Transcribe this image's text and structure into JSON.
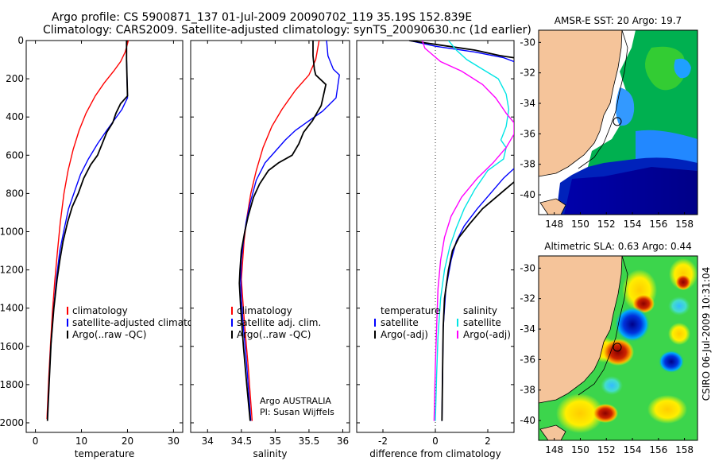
{
  "header": {
    "line1": "Argo profile: CS 5900871_137 01-Jul-2009 20090702_119 35.19S 152.839E",
    "line2": "Climatology: CARS2009. Satellite-adjusted climatology: synTS_20090630.nc (1d earlier)"
  },
  "colors": {
    "clim": "#ff0000",
    "sat": "#0000ff",
    "argo": "#000000",
    "cyan": "#00e5e5",
    "magenta": "#ff00ff",
    "land": "#f5c49a"
  },
  "chart_data": [
    {
      "type": "line",
      "name": "temperature-profile",
      "xlabel": "temperature",
      "ylabel": "",
      "xlim": [
        -2,
        32
      ],
      "ylim": [
        2050,
        0
      ],
      "xticks": [
        0,
        10,
        20,
        30
      ],
      "yticks": [
        0,
        200,
        400,
        600,
        800,
        1000,
        1200,
        1400,
        1600,
        1800,
        2000
      ],
      "series": [
        {
          "name": "climatology",
          "color": "#ff0000",
          "points": [
            [
              20.2,
              0
            ],
            [
              19.5,
              60
            ],
            [
              18.5,
              110
            ],
            [
              17,
              160
            ],
            [
              15,
              220
            ],
            [
              13,
              290
            ],
            [
              11,
              380
            ],
            [
              9.5,
              470
            ],
            [
              8.2,
              570
            ],
            [
              7.1,
              680
            ],
            [
              6.2,
              800
            ],
            [
              5.4,
              950
            ],
            [
              4.8,
              1100
            ],
            [
              4.2,
              1260
            ],
            [
              3.7,
              1420
            ],
            [
              3.3,
              1580
            ],
            [
              2.9,
              1760
            ],
            [
              2.5,
              1980
            ]
          ]
        },
        {
          "name": "satellite-adjusted climatology",
          "color": "#0000ff",
          "points": [
            [
              19.8,
              0
            ],
            [
              19.8,
              100
            ],
            [
              19.9,
              200
            ],
            [
              20,
              300
            ],
            [
              18.8,
              360
            ],
            [
              17,
              420
            ],
            [
              15.5,
              470
            ],
            [
              13.5,
              540
            ],
            [
              11.5,
              620
            ],
            [
              9.8,
              700
            ],
            [
              8.5,
              790
            ],
            [
              7.2,
              880
            ],
            [
              6.3,
              980
            ],
            [
              5.3,
              1100
            ],
            [
              4.6,
              1240
            ],
            [
              3.9,
              1420
            ],
            [
              3.3,
              1620
            ],
            [
              2.9,
              1820
            ],
            [
              2.6,
              1980
            ]
          ]
        },
        {
          "name": "Argo(..raw -QC)",
          "color": "#000000",
          "points": [
            [
              19.8,
              0
            ],
            [
              19.8,
              100
            ],
            [
              19.9,
              200
            ],
            [
              20,
              290
            ],
            [
              18.5,
              330
            ],
            [
              17.5,
              380
            ],
            [
              16.8,
              430
            ],
            [
              15.5,
              480
            ],
            [
              14.5,
              540
            ],
            [
              13.5,
              600
            ],
            [
              12,
              650
            ],
            [
              10.5,
              720
            ],
            [
              9.3,
              800
            ],
            [
              8,
              870
            ],
            [
              7,
              950
            ],
            [
              6,
              1050
            ],
            [
              5.3,
              1150
            ],
            [
              4.7,
              1250
            ],
            [
              4,
              1400
            ],
            [
              3.4,
              1580
            ],
            [
              3,
              1780
            ],
            [
              2.6,
              1990
            ]
          ]
        }
      ],
      "legend": [
        "climatology",
        "satellite-adjusted climatology",
        "Argo(..raw -QC)"
      ],
      "legend_position": "bottom-right"
    },
    {
      "type": "line",
      "name": "salinity-profile",
      "xlabel": "salinity",
      "ylabel": "",
      "xlim": [
        33.75,
        36.1
      ],
      "ylim": [
        2050,
        0
      ],
      "xticks": [
        34,
        34.5,
        35,
        35.5,
        36
      ],
      "series": [
        {
          "name": "climatology",
          "color": "#ff0000",
          "points": [
            [
              35.65,
              0
            ],
            [
              35.6,
              100
            ],
            [
              35.5,
              180
            ],
            [
              35.3,
              260
            ],
            [
              35.1,
              360
            ],
            [
              34.95,
              450
            ],
            [
              34.82,
              560
            ],
            [
              34.72,
              680
            ],
            [
              34.64,
              800
            ],
            [
              34.58,
              930
            ],
            [
              34.54,
              1050
            ],
            [
              34.52,
              1150
            ],
            [
              34.5,
              1250
            ],
            [
              34.52,
              1350
            ],
            [
              34.55,
              1500
            ],
            [
              34.6,
              1700
            ],
            [
              34.66,
              1990
            ]
          ]
        },
        {
          "name": "satellite adj. clim.",
          "color": "#0000ff",
          "points": [
            [
              35.76,
              0
            ],
            [
              35.78,
              80
            ],
            [
              35.86,
              150
            ],
            [
              35.95,
              180
            ],
            [
              35.9,
              300
            ],
            [
              35.7,
              370
            ],
            [
              35.5,
              420
            ],
            [
              35.3,
              470
            ],
            [
              35.15,
              520
            ],
            [
              35.0,
              580
            ],
            [
              34.85,
              640
            ],
            [
              34.72,
              730
            ],
            [
              34.63,
              850
            ],
            [
              34.57,
              950
            ],
            [
              34.53,
              1050
            ],
            [
              34.5,
              1150
            ],
            [
              34.49,
              1250
            ],
            [
              34.5,
              1350
            ],
            [
              34.53,
              1500
            ],
            [
              34.58,
              1700
            ],
            [
              34.64,
              1990
            ]
          ]
        },
        {
          "name": "Argo(..raw -QC)",
          "color": "#000000",
          "points": [
            [
              35.56,
              0
            ],
            [
              35.56,
              80
            ],
            [
              35.58,
              150
            ],
            [
              35.6,
              180
            ],
            [
              35.75,
              230
            ],
            [
              35.68,
              340
            ],
            [
              35.55,
              420
            ],
            [
              35.42,
              480
            ],
            [
              35.35,
              540
            ],
            [
              35.25,
              600
            ],
            [
              35.05,
              640
            ],
            [
              34.9,
              680
            ],
            [
              34.77,
              750
            ],
            [
              34.68,
              820
            ],
            [
              34.6,
              920
            ],
            [
              34.55,
              1000
            ],
            [
              34.5,
              1100
            ],
            [
              34.48,
              1200
            ],
            [
              34.47,
              1270
            ],
            [
              34.49,
              1400
            ],
            [
              34.53,
              1600
            ],
            [
              34.58,
              1800
            ],
            [
              34.63,
              1990
            ]
          ]
        }
      ],
      "legend": [
        "climatology",
        "satellite adj. clim.",
        "Argo(..raw -QC)"
      ],
      "annotations": [
        "Argo AUSTRALIA",
        "PI: Susan Wijffels"
      ]
    },
    {
      "type": "line",
      "name": "difference-profile",
      "xlabel": "difference from climatology",
      "ylabel": "",
      "xlim": [
        -3,
        3
      ],
      "ylim": [
        2050,
        0
      ],
      "zero_line": "dotted",
      "xticks": [
        -2,
        0,
        2
      ],
      "legend_left": [
        "temperature",
        "satellite",
        "Argo(-adj)"
      ],
      "legend_right": [
        "salinity",
        "satellite",
        "Argo(-adj)"
      ],
      "series": [
        {
          "name": "temperature satellite",
          "color": "#0000ff",
          "points": [
            [
              -1,
              0
            ],
            [
              0,
              30
            ],
            [
              1.5,
              60
            ],
            [
              2.6,
              90
            ],
            [
              3,
              110
            ]
          ]
        },
        {
          "name": "temperature satellite (lower)",
          "color": "#0000ff",
          "points": [
            [
              3,
              670
            ],
            [
              2.6,
              720
            ],
            [
              2.1,
              800
            ],
            [
              1.6,
              880
            ],
            [
              1.1,
              970
            ],
            [
              0.8,
              1050
            ],
            [
              0.6,
              1150
            ],
            [
              0.4,
              1300
            ],
            [
              0.3,
              1500
            ],
            [
              0.28,
              1700
            ],
            [
              0.25,
              1990
            ]
          ]
        },
        {
          "name": "temperature Argo(-adj)",
          "color": "#000000",
          "points": [
            [
              -1,
              0
            ],
            [
              0,
              20
            ],
            [
              1.5,
              50
            ],
            [
              2.5,
              80
            ],
            [
              3,
              90
            ]
          ]
        },
        {
          "name": "temperature Argo(-adj) (lower)",
          "color": "#000000",
          "points": [
            [
              3,
              740
            ],
            [
              2.4,
              810
            ],
            [
              1.8,
              880
            ],
            [
              1.3,
              960
            ],
            [
              0.9,
              1030
            ],
            [
              0.65,
              1100
            ],
            [
              0.5,
              1200
            ],
            [
              0.35,
              1350
            ],
            [
              0.3,
              1500
            ],
            [
              0.28,
              1700
            ],
            [
              0.25,
              1990
            ]
          ]
        },
        {
          "name": "salinity satellite",
          "color": "#00e5e5",
          "points": [
            [
              0.5,
              0
            ],
            [
              0.8,
              50
            ],
            [
              1.2,
              100
            ],
            [
              1.8,
              150
            ],
            [
              2.4,
              200
            ],
            [
              2.7,
              280
            ],
            [
              2.8,
              360
            ],
            [
              2.7,
              450
            ],
            [
              2.5,
              520
            ],
            [
              2.7,
              560
            ],
            [
              2.6,
              620
            ],
            [
              2,
              680
            ],
            [
              1.5,
              780
            ],
            [
              1.1,
              880
            ],
            [
              0.8,
              980
            ],
            [
              0.55,
              1080
            ],
            [
              0.35,
              1200
            ],
            [
              0.2,
              1350
            ],
            [
              0.1,
              1550
            ],
            [
              0.05,
              1750
            ],
            [
              0,
              1990
            ]
          ]
        },
        {
          "name": "salinity Argo(-adj)",
          "color": "#ff00ff",
          "points": [
            [
              -0.5,
              0
            ],
            [
              -0.4,
              40
            ],
            [
              0.2,
              110
            ],
            [
              1,
              160
            ],
            [
              1.8,
              230
            ],
            [
              2.3,
              300
            ],
            [
              2.7,
              380
            ],
            [
              3,
              430
            ],
            [
              3,
              490
            ],
            [
              2.7,
              560
            ],
            [
              2.2,
              640
            ],
            [
              1.6,
              720
            ],
            [
              1,
              820
            ],
            [
              0.6,
              920
            ],
            [
              0.35,
              1030
            ],
            [
              0.2,
              1150
            ],
            [
              0.1,
              1300
            ],
            [
              0.05,
              1500
            ],
            [
              0,
              1700
            ],
            [
              -0.05,
              1990
            ]
          ]
        }
      ]
    },
    {
      "type": "heatmap",
      "name": "sst-map",
      "title": "AMSR-E SST: 20 Argo: 19.7",
      "xlim": [
        146.8,
        159
      ],
      "ylim": [
        -41.3,
        -29.2
      ],
      "xticks": [
        148,
        150,
        152,
        154,
        156,
        158
      ],
      "yticks": [
        -30,
        -32,
        -34,
        -36,
        -38,
        -40
      ],
      "xtick_labels": [
        "148",
        "150",
        "152",
        "154",
        "156",
        "158"
      ],
      "ytick_labels": [
        "-30",
        "-32",
        "-34",
        "-36",
        "-38",
        "-40"
      ],
      "argo_position": [
        152.84,
        -35.19
      ]
    },
    {
      "type": "heatmap",
      "name": "sla-map",
      "title": "Altimetric SLA: 0.63 Argo: 0.44",
      "xlim": [
        146.8,
        159
      ],
      "ylim": [
        -41.3,
        -29.2
      ],
      "xticks": [
        148,
        150,
        152,
        154,
        156,
        158
      ],
      "yticks": [
        -30,
        -32,
        -34,
        -36,
        -38,
        -40
      ],
      "xtick_labels": [
        "148",
        "150",
        "152",
        "154",
        "156",
        "158"
      ],
      "ytick_labels": [
        "-30",
        "-32",
        "-34",
        "-36",
        "-38",
        "-40"
      ],
      "argo_position": [
        152.84,
        -35.19
      ]
    }
  ],
  "credit": "CSIRO 06-Jul-2009 10:31:04"
}
